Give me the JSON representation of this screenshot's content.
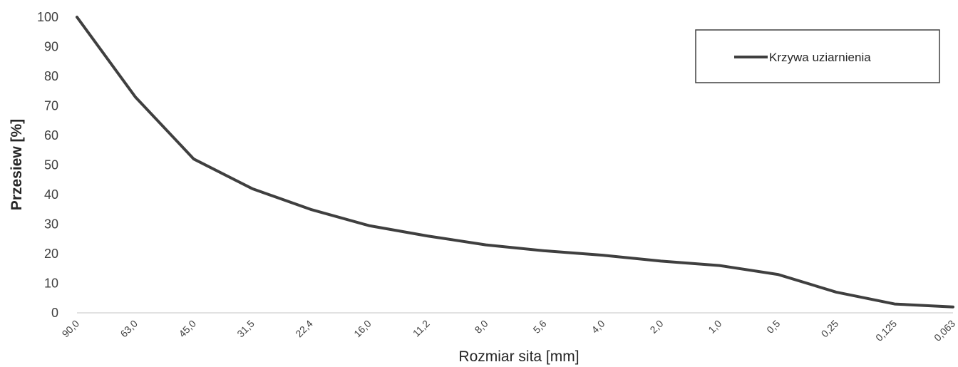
{
  "chart_data": {
    "type": "line",
    "categories": [
      "90,0",
      "63,0",
      "45,0",
      "31,5",
      "22,4",
      "16,0",
      "11,2",
      "8,0",
      "5,6",
      "4,0",
      "2,0",
      "1,0",
      "0,5",
      "0,25",
      "0,125",
      "0,063"
    ],
    "series": [
      {
        "name": "Krzywa uziarnienia",
        "values": [
          100,
          73,
          52,
          42,
          35,
          29.5,
          26,
          23,
          21,
          19.5,
          17.5,
          16,
          13,
          7,
          3,
          2
        ],
        "color": "#3f3f3f"
      }
    ],
    "xlabel": "Rozmiar sita [mm]",
    "ylabel": "Przesiew [%]",
    "ylim": [
      0,
      100
    ],
    "yticks": [
      "0",
      "10",
      "20",
      "30",
      "40",
      "50",
      "60",
      "70",
      "80",
      "90",
      "100"
    ],
    "grid": false,
    "legend": "top-right"
  }
}
